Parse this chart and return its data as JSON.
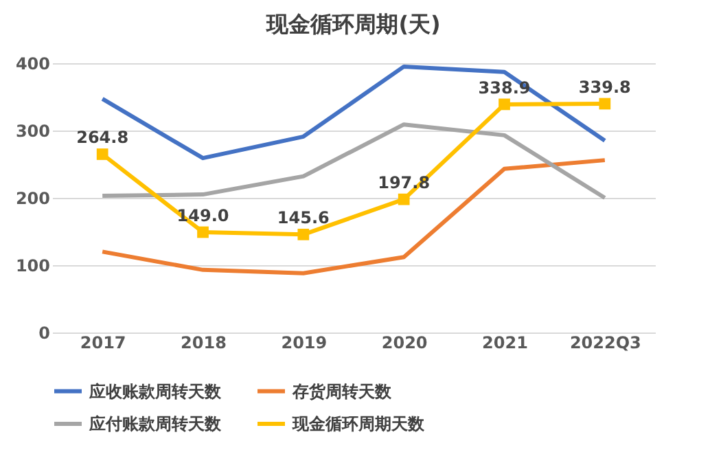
{
  "chart_data": {
    "type": "line",
    "title": "现金循环周期(天)",
    "categories": [
      "2017",
      "2018",
      "2019",
      "2020",
      "2021",
      "2022Q3"
    ],
    "series": [
      {
        "name": "应收账款周转天数",
        "color": "#4472c4",
        "marker": "none",
        "values": [
          347,
          259,
          291,
          395,
          387,
          285
        ]
      },
      {
        "name": "存货周转天数",
        "color": "#ed7d31",
        "marker": "none",
        "values": [
          120,
          93,
          88,
          112,
          243,
          256
        ]
      },
      {
        "name": "应付账款周转天数",
        "color": "#a5a5a5",
        "marker": "none",
        "values": [
          203,
          205,
          232,
          309,
          293,
          200
        ]
      },
      {
        "name": "现金循环周期天数",
        "color": "#ffc000",
        "marker": "square",
        "values": [
          264.8,
          149.0,
          145.6,
          197.8,
          338.9,
          339.8
        ],
        "value_labels": [
          "264.8",
          "149.0",
          "145.6",
          "197.8",
          "338.9",
          "339.8"
        ]
      }
    ],
    "ylim": [
      0,
      400
    ],
    "yticks": [
      0,
      100,
      200,
      300,
      400
    ],
    "grid": "y",
    "legend": "bottom"
  }
}
